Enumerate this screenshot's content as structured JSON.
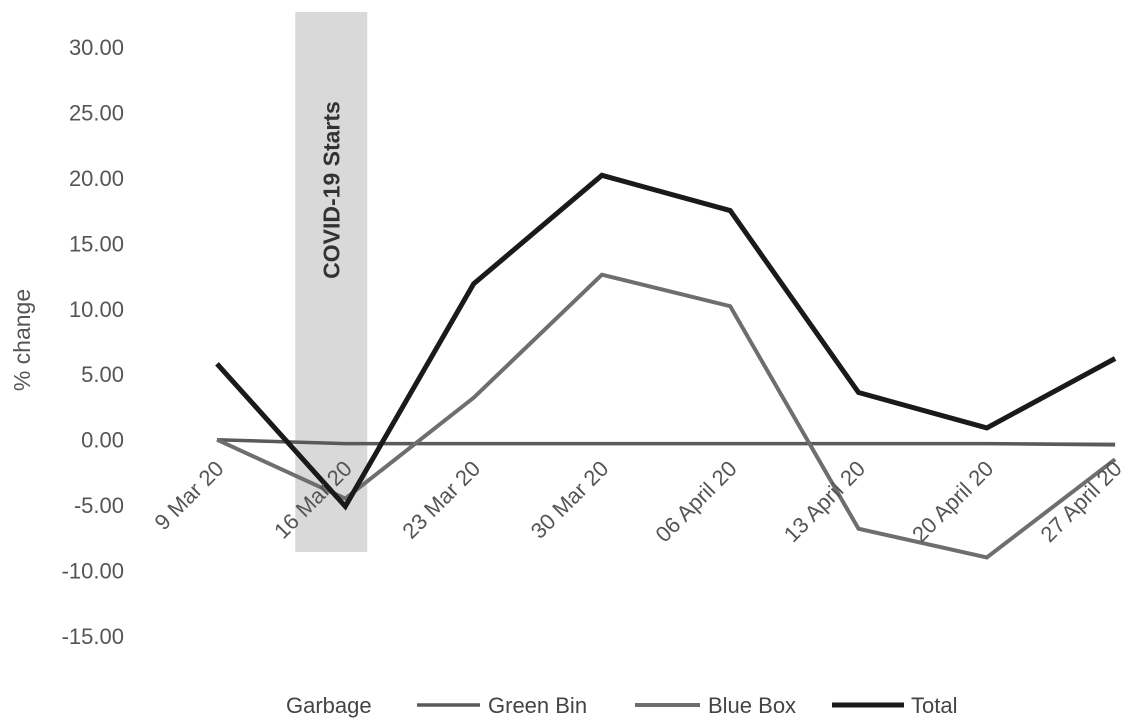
{
  "chart_data": {
    "type": "line",
    "ylabel": "% change",
    "xlabel": "",
    "title": "",
    "x": [
      "9 Mar 20",
      "16 Mar 20",
      "23 Mar 20",
      "30 Mar 20",
      "06 April 20",
      "13 April 20",
      "20 April 20",
      "27 April 20"
    ],
    "ylim": [
      -15,
      30
    ],
    "yticks": [
      "30.00",
      "25.00",
      "20.00",
      "15.00",
      "10.00",
      "5.00",
      "0.00",
      "-5.00",
      "-10.00",
      "-15.00"
    ],
    "grid": false,
    "legend": "bottom",
    "annotation": {
      "text": "COVID-19 Starts",
      "x": "16 Mar 20",
      "color": "#d9d9d9"
    },
    "series": [
      {
        "name": "Garbage",
        "color": "#b0b0b0",
        "values": [
          0.0,
          -0.3,
          -0.3,
          -0.3,
          -0.3,
          -0.3,
          -0.3,
          -0.3
        ]
      },
      {
        "name": "Green Bin",
        "color": "#5a5a5a",
        "values": [
          0.0,
          -0.3,
          -0.3,
          -0.3,
          -0.3,
          -0.3,
          -0.3,
          -0.4
        ]
      },
      {
        "name": "Blue Box",
        "color": "#6e6e6e",
        "values": [
          0.0,
          -4.5,
          3.2,
          12.6,
          10.2,
          -6.8,
          -9.0,
          -1.5
        ]
      },
      {
        "name": "Total",
        "color": "#1a1a1a",
        "values": [
          5.8,
          -5.1,
          11.9,
          20.2,
          17.5,
          3.6,
          0.9,
          6.2
        ]
      }
    ]
  }
}
